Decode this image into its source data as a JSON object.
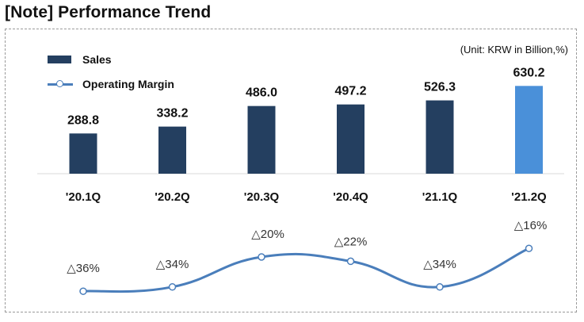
{
  "title": "[Note] Performance Trend",
  "unit": "(Unit: KRW in Billion,%)",
  "legend": {
    "sales": "Sales",
    "margin": "Operating Margin"
  },
  "colors": {
    "bar": "#243f60",
    "bar_highlight": "#4a90d9",
    "line": "#4a7ebb"
  },
  "chart_data": {
    "type": "bar",
    "categories": [
      "'20.1Q",
      "'20.2Q",
      "'20.3Q",
      "'20.4Q",
      "'21.1Q",
      "'21.2Q"
    ],
    "series": [
      {
        "name": "Sales",
        "type": "bar",
        "values": [
          288.8,
          338.2,
          486.0,
          497.2,
          526.3,
          630.2
        ],
        "labels": [
          "288.8",
          "338.2",
          "486.0",
          "497.2",
          "526.3",
          "630.2"
        ]
      },
      {
        "name": "Operating Margin",
        "type": "line",
        "values": [
          -36,
          -34,
          -20,
          -22,
          -34,
          -16
        ],
        "labels": [
          "△36%",
          "△34%",
          "△20%",
          "△22%",
          "△34%",
          "△16%"
        ]
      }
    ],
    "highlight_index": 5,
    "legend_position": "top-left"
  }
}
